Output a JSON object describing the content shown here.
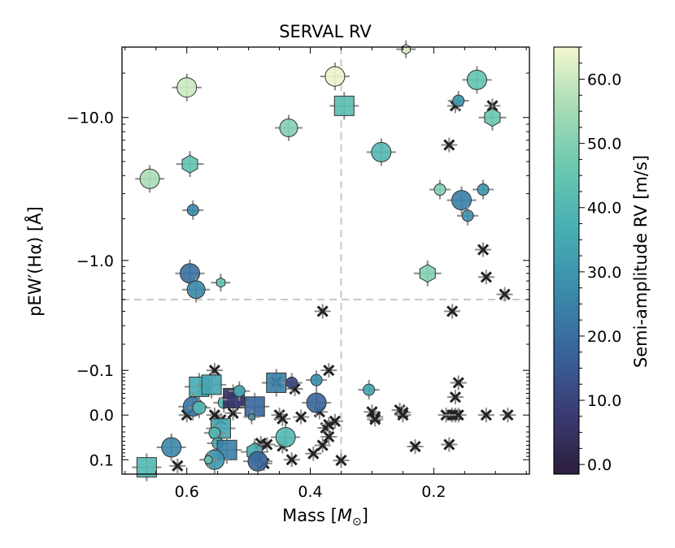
{
  "chart_data": {
    "type": "scatter",
    "title": "SERVAL RV",
    "xlabel": "Mass [M⊙]",
    "xlabel_text": "Mass [",
    "xlabel_symbol": "M",
    "xlabel_sub": "⊙",
    "xlabel_end": "]",
    "ylabel": "pEW′(Hα) [Å]",
    "xlim": [
      0.705,
      0.045
    ],
    "x_inverted": true,
    "y_scale": "symlog",
    "ylim": [
      0.15,
      -30.0
    ],
    "x_ticks": [
      {
        "value": 0.6,
        "label": "0.6"
      },
      {
        "value": 0.4,
        "label": "0.4"
      },
      {
        "value": 0.2,
        "label": "0.2"
      }
    ],
    "y_ticks": [
      {
        "value": -10.0,
        "label": "−10.0"
      },
      {
        "value": -1.0,
        "label": "−1.0"
      },
      {
        "value": -0.1,
        "label": "−0.1"
      },
      {
        "value": 0.0,
        "label": "0.0"
      },
      {
        "value": 0.1,
        "label": "0.1"
      }
    ],
    "reference_lines": {
      "x": 0.35,
      "y": -0.5
    },
    "colorbar": {
      "label": "Semi-amplitude RV [m/s]",
      "range": [
        -1.5,
        65.0
      ],
      "ticks": [
        {
          "value": 0,
          "label": "0.0"
        },
        {
          "value": 10,
          "label": "10.0"
        },
        {
          "value": 20,
          "label": "20.0"
        },
        {
          "value": 30,
          "label": "30.0"
        },
        {
          "value": 40,
          "label": "40.0"
        },
        {
          "value": 50,
          "label": "50.0"
        },
        {
          "value": 60,
          "label": "60.0"
        }
      ],
      "colormap": [
        "#2c1e3d",
        "#3a3b73",
        "#38649b",
        "#3b8bab",
        "#46aeb3",
        "#69c8b0",
        "#a6dcb5",
        "#f3f7cf"
      ]
    },
    "detections": [
      {
        "x": 0.66,
        "y": -3.8,
        "k": 56,
        "size": 12,
        "shape": "circle"
      },
      {
        "x": 0.6,
        "y": -16,
        "k": 60,
        "size": 12,
        "shape": "circle"
      },
      {
        "x": 0.595,
        "y": -4.8,
        "k": 44,
        "size": 11,
        "shape": "hexagon"
      },
      {
        "x": 0.59,
        "y": -2.3,
        "k": 26,
        "size": 7,
        "shape": "circle"
      },
      {
        "x": 0.595,
        "y": -0.8,
        "k": 20,
        "size": 12,
        "shape": "circle"
      },
      {
        "x": 0.585,
        "y": -0.6,
        "k": 26,
        "size": 11,
        "shape": "circle"
      },
      {
        "x": 0.545,
        "y": -0.68,
        "k": 44,
        "size": 6,
        "shape": "hexagon"
      },
      {
        "x": 0.435,
        "y": -8.5,
        "k": 50,
        "size": 11,
        "shape": "circle"
      },
      {
        "x": 0.36,
        "y": -19,
        "k": 64,
        "size": 12,
        "shape": "circle"
      },
      {
        "x": 0.345,
        "y": -12,
        "k": 42,
        "size": 12,
        "shape": "square"
      },
      {
        "x": 0.285,
        "y": -5.8,
        "k": 40,
        "size": 12,
        "shape": "circle"
      },
      {
        "x": 0.245,
        "y": -29,
        "k": 62,
        "size": 6,
        "shape": "hexagon"
      },
      {
        "x": 0.21,
        "y": -0.8,
        "k": 50,
        "size": 11,
        "shape": "hexagon"
      },
      {
        "x": 0.19,
        "y": -3.2,
        "k": 50,
        "size": 7,
        "shape": "circle"
      },
      {
        "x": 0.16,
        "y": -13,
        "k": 30,
        "size": 7,
        "shape": "circle"
      },
      {
        "x": 0.155,
        "y": -2.7,
        "k": 24,
        "size": 12,
        "shape": "circle"
      },
      {
        "x": 0.145,
        "y": -2.1,
        "k": 28,
        "size": 7,
        "shape": "circle"
      },
      {
        "x": 0.13,
        "y": -18,
        "k": 44,
        "size": 12,
        "shape": "circle"
      },
      {
        "x": 0.12,
        "y": -3.2,
        "k": 30,
        "size": 7,
        "shape": "circle"
      },
      {
        "x": 0.105,
        "y": -10,
        "k": 46,
        "size": 11,
        "shape": "hexagon"
      },
      {
        "x": 0.58,
        "y": -0.055,
        "k": 36,
        "size": 12,
        "shape": "square"
      },
      {
        "x": 0.56,
        "y": -0.06,
        "k": 34,
        "size": 12,
        "shape": "square"
      },
      {
        "x": 0.59,
        "y": -0.014,
        "k": 22,
        "size": 12,
        "shape": "circle"
      },
      {
        "x": 0.58,
        "y": -0.012,
        "k": 40,
        "size": 8,
        "shape": "circle"
      },
      {
        "x": 0.545,
        "y": 0.023,
        "k": 34,
        "size": 12,
        "shape": "square"
      },
      {
        "x": 0.555,
        "y": 0.032,
        "k": 40,
        "size": 7,
        "shape": "circle"
      },
      {
        "x": 0.54,
        "y": -0.021,
        "k": 40,
        "size": 7,
        "shape": "circle"
      },
      {
        "x": 0.525,
        "y": -0.03,
        "k": 4,
        "size": 12,
        "shape": "square"
      },
      {
        "x": 0.52,
        "y": -0.027,
        "k": 8,
        "size": 10,
        "shape": "square"
      },
      {
        "x": 0.515,
        "y": -0.045,
        "k": 36,
        "size": 7,
        "shape": "circle"
      },
      {
        "x": 0.49,
        "y": -0.014,
        "k": 18,
        "size": 12,
        "shape": "square"
      },
      {
        "x": 0.495,
        "y": 0.003,
        "k": 30,
        "size": 4,
        "shape": "circle"
      },
      {
        "x": 0.455,
        "y": -0.065,
        "k": 24,
        "size": 12,
        "shape": "square"
      },
      {
        "x": 0.43,
        "y": -0.065,
        "k": 10,
        "size": 7,
        "shape": "circle"
      },
      {
        "x": 0.39,
        "y": -0.072,
        "k": 28,
        "size": 7,
        "shape": "circle"
      },
      {
        "x": 0.39,
        "y": -0.021,
        "k": 18,
        "size": 12,
        "shape": "circle"
      },
      {
        "x": 0.44,
        "y": 0.041,
        "k": 40,
        "size": 12,
        "shape": "circle"
      },
      {
        "x": 0.305,
        "y": -0.048,
        "k": 34,
        "size": 7,
        "shape": "circle"
      },
      {
        "x": 0.55,
        "y": 0.055,
        "k": 36,
        "size": 7,
        "shape": "circle"
      },
      {
        "x": 0.625,
        "y": 0.065,
        "k": 26,
        "size": 12,
        "shape": "circle"
      },
      {
        "x": 0.535,
        "y": 0.072,
        "k": 24,
        "size": 12,
        "shape": "square"
      },
      {
        "x": 0.49,
        "y": 0.077,
        "k": 36,
        "size": 11,
        "shape": "hexagon"
      },
      {
        "x": 0.555,
        "y": 0.1,
        "k": 30,
        "size": 12,
        "shape": "circle"
      },
      {
        "x": 0.565,
        "y": 0.1,
        "k": 44,
        "size": 5,
        "shape": "circle"
      },
      {
        "x": 0.485,
        "y": 0.105,
        "k": 18,
        "size": 12,
        "shape": "circle"
      },
      {
        "x": 0.665,
        "y": 0.125,
        "k": 40,
        "size": 12,
        "shape": "square"
      }
    ],
    "non_detections": [
      {
        "x": 0.38,
        "y": -0.4
      },
      {
        "x": 0.37,
        "y": -0.1
      },
      {
        "x": 0.555,
        "y": -0.1
      },
      {
        "x": 0.455,
        "y": -0.067
      },
      {
        "x": 0.425,
        "y": -0.05
      },
      {
        "x": 0.6,
        "y": 0.0
      },
      {
        "x": 0.555,
        "y": 0.0
      },
      {
        "x": 0.545,
        "y": 0.008
      },
      {
        "x": 0.525,
        "y": -0.003
      },
      {
        "x": 0.45,
        "y": 0.0
      },
      {
        "x": 0.415,
        "y": 0.003
      },
      {
        "x": 0.385,
        "y": -0.005
      },
      {
        "x": 0.3,
        "y": -0.005
      },
      {
        "x": 0.295,
        "y": 0.003
      },
      {
        "x": 0.295,
        "y": 0.007
      },
      {
        "x": 0.255,
        "y": -0.008
      },
      {
        "x": 0.25,
        "y": -0.004
      },
      {
        "x": 0.25,
        "y": 0.0
      },
      {
        "x": 0.18,
        "y": 0.0
      },
      {
        "x": 0.17,
        "y": 0.0
      },
      {
        "x": 0.165,
        "y": 0.0
      },
      {
        "x": 0.16,
        "y": 0.0
      },
      {
        "x": 0.115,
        "y": 0.0
      },
      {
        "x": 0.08,
        "y": 0.0
      },
      {
        "x": 0.165,
        "y": -0.032
      },
      {
        "x": 0.16,
        "y": -0.065
      },
      {
        "x": 0.375,
        "y": 0.022
      },
      {
        "x": 0.37,
        "y": 0.016
      },
      {
        "x": 0.36,
        "y": 0.01
      },
      {
        "x": 0.445,
        "y": 0.006
      },
      {
        "x": 0.37,
        "y": 0.04
      },
      {
        "x": 0.48,
        "y": 0.055
      },
      {
        "x": 0.47,
        "y": 0.058
      },
      {
        "x": 0.445,
        "y": 0.062
      },
      {
        "x": 0.38,
        "y": 0.06
      },
      {
        "x": 0.395,
        "y": 0.082
      },
      {
        "x": 0.43,
        "y": 0.1
      },
      {
        "x": 0.475,
        "y": 0.112
      },
      {
        "x": 0.35,
        "y": 0.102
      },
      {
        "x": 0.615,
        "y": 0.12
      },
      {
        "x": 0.23,
        "y": 0.063
      },
      {
        "x": 0.175,
        "y": 0.058
      },
      {
        "x": 0.165,
        "y": -12
      },
      {
        "x": 0.175,
        "y": -6.5
      },
      {
        "x": 0.12,
        "y": -1.2
      },
      {
        "x": 0.115,
        "y": -0.75
      },
      {
        "x": 0.085,
        "y": -0.55
      },
      {
        "x": 0.17,
        "y": -0.4
      },
      {
        "x": 0.105,
        "y": -12
      }
    ]
  }
}
